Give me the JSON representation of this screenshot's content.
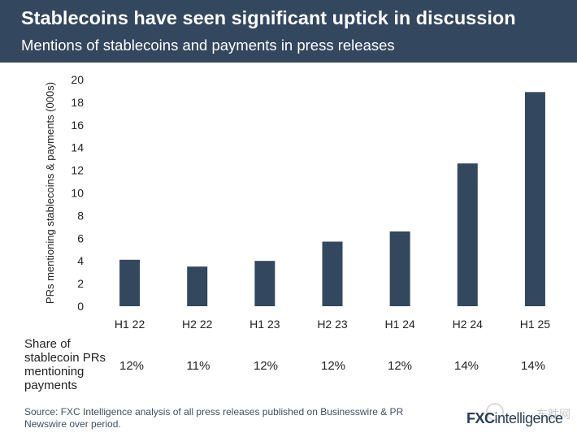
{
  "header": {
    "title": "Stablecoins have seen significant uptick in discussion",
    "subtitle": "Mentions of stablecoins and payments in press releases"
  },
  "chart_data": {
    "type": "bar",
    "title": "Stablecoins have seen significant uptick in discussion",
    "subtitle": "Mentions of stablecoins and payments in press releases",
    "categories": [
      "H1 22",
      "H2 22",
      "H1 23",
      "H2 23",
      "H1 24",
      "H2 24",
      "H1 25"
    ],
    "values": [
      4.1,
      3.5,
      4.0,
      5.7,
      6.6,
      12.6,
      18.9
    ],
    "xlabel": "",
    "ylabel": "PRs mentioning stablecoins & payments (000s)",
    "ylim": [
      0,
      20
    ],
    "yticks": [
      0,
      2,
      4,
      6,
      8,
      10,
      12,
      14,
      16,
      18,
      20
    ],
    "ytick_labels": [
      "0",
      "2",
      "4",
      "6",
      "8",
      "10",
      "12",
      "14",
      "16",
      "18",
      "20"
    ],
    "grid": false,
    "bar_color": "#33475e"
  },
  "share": {
    "label_lines": [
      "Share of",
      "stablecoin PRs",
      "mentioning",
      "payments"
    ],
    "values": [
      "12%",
      "11%",
      "12%",
      "12%",
      "12%",
      "14%",
      "14%"
    ]
  },
  "source": {
    "text": "Source: FXC Intelligence analysis of all press releases published on Businesswire & PR Newswire over period."
  },
  "logo": {
    "brand_bold": "FXC",
    "brand_rest": "intelligence",
    "watermark": "东胜网"
  }
}
